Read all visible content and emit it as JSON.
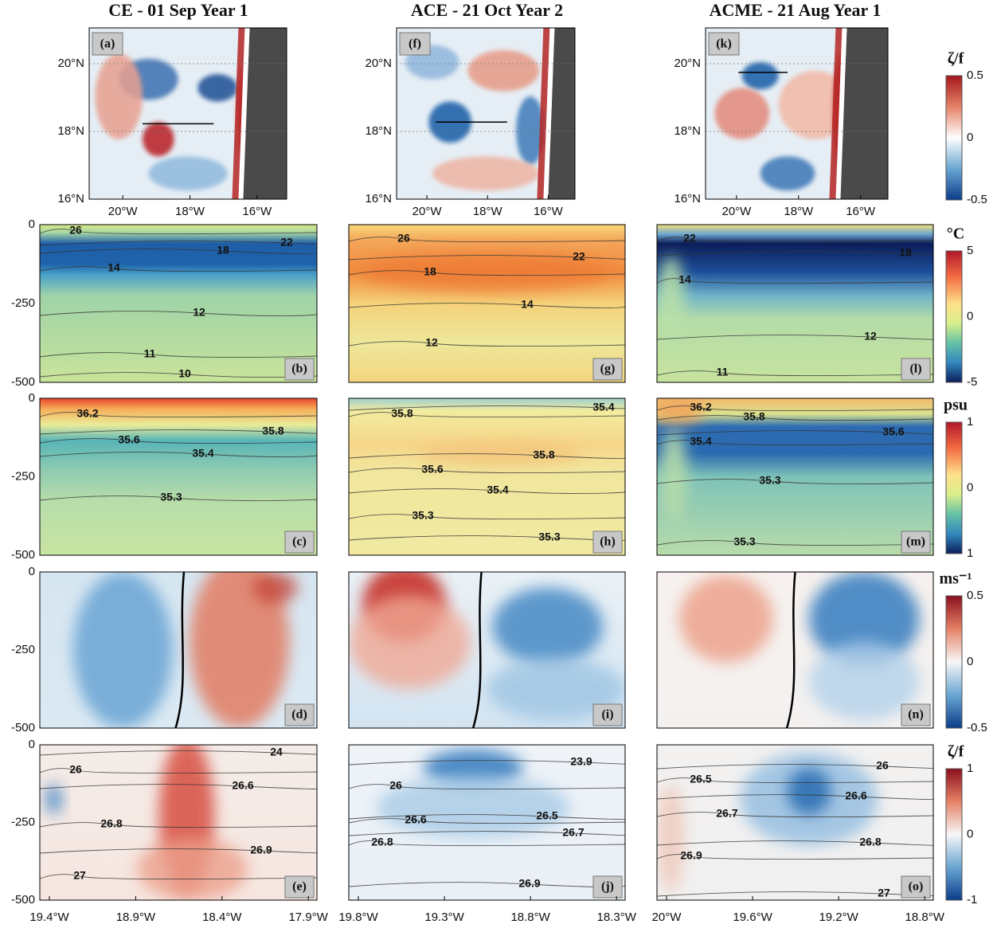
{
  "columns": [
    {
      "title": "CE - 01 Sep Year 1",
      "map": {
        "label": "(a)",
        "xticks": [
          "20°W",
          "18°W",
          "16°W"
        ]
      },
      "sections": [
        {
          "label": "(b)",
          "contours": [
            26,
            22,
            18,
            14,
            12,
            11,
            10
          ]
        },
        {
          "label": "(c)",
          "contours": [
            36.2,
            35.6,
            35.8,
            35.4,
            35.3
          ]
        },
        {
          "label": "(d)",
          "contours": []
        },
        {
          "label": "(e)",
          "contours": [
            24,
            26,
            26.6,
            26.8,
            26.9,
            27
          ]
        }
      ],
      "xticks": [
        "19.4°W",
        "18.9°W",
        "18.4°W",
        "17.9°W"
      ]
    },
    {
      "title": "ACE - 21 Oct Year 2",
      "map": {
        "label": "(f)",
        "xticks": [
          "20°W",
          "18°W",
          "16°W"
        ]
      },
      "sections": [
        {
          "label": "(g)",
          "contours": [
            26,
            22,
            18,
            14,
            12
          ]
        },
        {
          "label": "(h)",
          "contours": [
            35.8,
            35.4,
            35.8,
            35.6,
            35.4,
            35.3,
            35.3
          ]
        },
        {
          "label": "(i)",
          "contours": []
        },
        {
          "label": "(j)",
          "contours": [
            23.9,
            26,
            26.5,
            26.6,
            26.7,
            26.8,
            26.9
          ]
        }
      ],
      "xticks": [
        "19.8°W",
        "19.3°W",
        "18.8°W",
        "18.3°W"
      ]
    },
    {
      "title": "ACME - 21 Aug Year 1",
      "map": {
        "label": "(k)",
        "xticks": [
          "20°W",
          "18°W",
          "16°W"
        ]
      },
      "sections": [
        {
          "label": "(l)",
          "contours": [
            22,
            18,
            14,
            12,
            11
          ]
        },
        {
          "label": "(m)",
          "contours": [
            36.2,
            35.8,
            35.4,
            35.6,
            35.3,
            35.3
          ]
        },
        {
          "label": "(n)",
          "contours": []
        },
        {
          "label": "(o)",
          "contours": [
            26,
            26.5,
            26.6,
            26.7,
            26.8,
            26.9,
            27
          ]
        }
      ],
      "xticks": [
        "20°W",
        "19.6°W",
        "19.2°W",
        "18.8°W"
      ]
    }
  ],
  "map_yticks": [
    "20°N",
    "18°N",
    "16°N"
  ],
  "depth_ticks": [
    0,
    -250,
    -500
  ],
  "colorbars": [
    {
      "unit": "ζ/f",
      "ticks": [
        0.5,
        0,
        -0.5
      ]
    },
    {
      "unit": "°C",
      "ticks": [
        5,
        0,
        -5
      ]
    },
    {
      "unit": "psu",
      "ticks": [
        1,
        0,
        1
      ]
    },
    {
      "unit": "ms⁻¹",
      "ticks": [
        0.5,
        0,
        -0.5
      ]
    },
    {
      "unit": "ζ/f",
      "ticks": [
        1,
        0,
        -1
      ]
    }
  ]
}
